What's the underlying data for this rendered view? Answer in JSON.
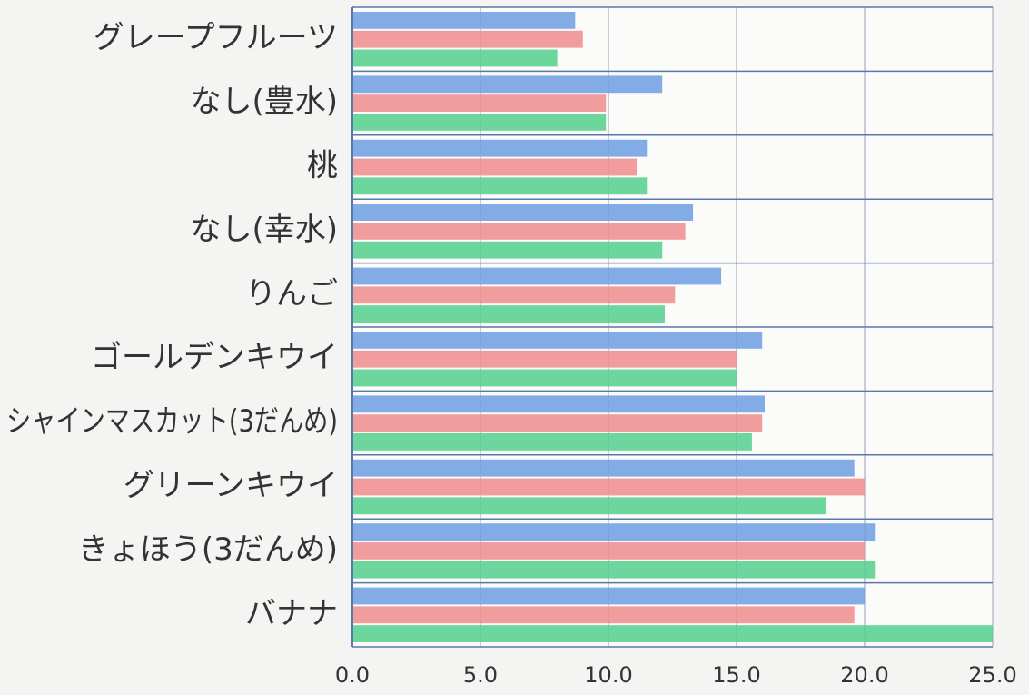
{
  "chart_data": {
    "type": "barh",
    "categories": [
      "グレープフルーツ",
      "なし(豊水)",
      "桃",
      "なし(幸水)",
      "りんご",
      "ゴールデンキウイ",
      "シャインマスカット(3だんめ)",
      "グリーンキウイ",
      "きょほう(3だんめ)",
      "バナナ"
    ],
    "series": [
      {
        "color": "#6d9ee2",
        "values": [
          8.7,
          12.1,
          11.5,
          13.3,
          14.4,
          16.0,
          16.1,
          19.6,
          20.4,
          20.0
        ]
      },
      {
        "color": "#f08c8c",
        "values": [
          9.0,
          9.9,
          11.1,
          13.0,
          12.6,
          15.0,
          16.0,
          20.0,
          20.0,
          19.6
        ]
      },
      {
        "color": "#52cf8c",
        "values": [
          8.0,
          9.9,
          11.5,
          12.1,
          12.2,
          15.0,
          15.6,
          18.5,
          20.4,
          25.0
        ]
      }
    ],
    "xlim": [
      0,
      25
    ],
    "xticks": [
      {
        "value": 0,
        "label": "0.0"
      },
      {
        "value": 5,
        "label": "5.0"
      },
      {
        "value": 10,
        "label": "10.0"
      },
      {
        "value": 15,
        "label": "15.0"
      },
      {
        "value": 20,
        "label": "20.0"
      },
      {
        "value": 25,
        "label": "25.0"
      }
    ],
    "grid": true
  }
}
